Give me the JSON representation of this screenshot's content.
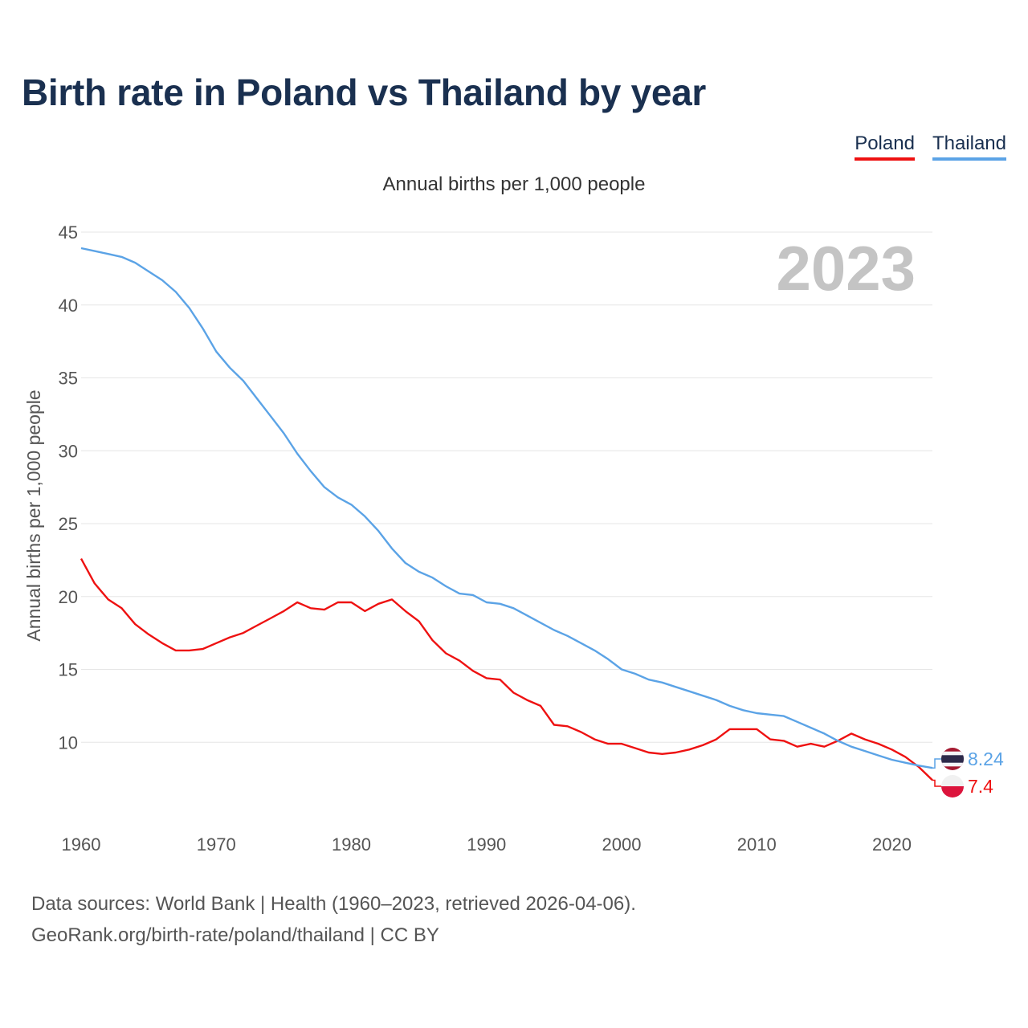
{
  "title": "Birth rate in Poland vs Thailand by year",
  "subtitle": "Annual births per 1,000 people",
  "legend": [
    {
      "label": "Poland",
      "color": "#ee1111"
    },
    {
      "label": "Thailand",
      "color": "#5ba3e6"
    }
  ],
  "year_label": "2023",
  "footer": {
    "line1": "Data sources: World Bank | Health (1960–2023, retrieved 2026-04-06).",
    "line2": "GeoRank.org/birth-rate/poland/thailand | CC BY"
  },
  "chart_data": {
    "type": "line",
    "title": "Birth rate in Poland vs Thailand by year",
    "ylabel": "Annual births per 1,000 people",
    "xlabel": "",
    "xlim": [
      1960,
      2023
    ],
    "ylim": [
      5,
      45
    ],
    "yticks": [
      10,
      15,
      20,
      25,
      30,
      35,
      40,
      45
    ],
    "xticks": [
      1960,
      1970,
      1980,
      1990,
      2000,
      2010,
      2020
    ],
    "grid": true,
    "x": [
      1960,
      1961,
      1962,
      1963,
      1964,
      1965,
      1966,
      1967,
      1968,
      1969,
      1970,
      1971,
      1972,
      1973,
      1974,
      1975,
      1976,
      1977,
      1978,
      1979,
      1980,
      1981,
      1982,
      1983,
      1984,
      1985,
      1986,
      1987,
      1988,
      1989,
      1990,
      1991,
      1992,
      1993,
      1994,
      1995,
      1996,
      1997,
      1998,
      1999,
      2000,
      2001,
      2002,
      2003,
      2004,
      2005,
      2006,
      2007,
      2008,
      2009,
      2010,
      2011,
      2012,
      2013,
      2014,
      2015,
      2016,
      2017,
      2018,
      2019,
      2020,
      2021,
      2022,
      2023
    ],
    "series": [
      {
        "name": "Poland",
        "color": "#ee1111",
        "end_label": "7.4",
        "values": [
          22.6,
          20.9,
          19.8,
          19.2,
          18.1,
          17.4,
          16.8,
          16.3,
          16.3,
          16.4,
          16.8,
          17.2,
          17.5,
          18.0,
          18.5,
          19.0,
          19.6,
          19.2,
          19.1,
          19.6,
          19.6,
          19.0,
          19.5,
          19.8,
          19.0,
          18.3,
          17.0,
          16.1,
          15.6,
          14.9,
          14.4,
          14.3,
          13.4,
          12.9,
          12.5,
          11.2,
          11.1,
          10.7,
          10.2,
          9.9,
          9.9,
          9.6,
          9.3,
          9.2,
          9.3,
          9.5,
          9.8,
          10.2,
          10.9,
          10.9,
          10.9,
          10.2,
          10.1,
          9.7,
          9.9,
          9.7,
          10.1,
          10.6,
          10.2,
          9.9,
          9.5,
          9.0,
          8.3,
          7.4
        ]
      },
      {
        "name": "Thailand",
        "color": "#5ba3e6",
        "end_label": "8.24",
        "values": [
          43.9,
          43.7,
          43.5,
          43.3,
          42.9,
          42.3,
          41.7,
          40.9,
          39.8,
          38.4,
          36.8,
          35.7,
          34.8,
          33.6,
          32.4,
          31.2,
          29.8,
          28.6,
          27.5,
          26.8,
          26.3,
          25.5,
          24.5,
          23.3,
          22.3,
          21.7,
          21.3,
          20.7,
          20.2,
          20.1,
          19.6,
          19.5,
          19.2,
          18.7,
          18.2,
          17.7,
          17.3,
          16.8,
          16.3,
          15.7,
          15.0,
          14.7,
          14.3,
          14.1,
          13.8,
          13.5,
          13.2,
          12.9,
          12.5,
          12.2,
          12.0,
          11.9,
          11.8,
          11.4,
          11.0,
          10.6,
          10.1,
          9.7,
          9.4,
          9.1,
          8.8,
          8.6,
          8.4,
          8.24
        ]
      }
    ]
  }
}
